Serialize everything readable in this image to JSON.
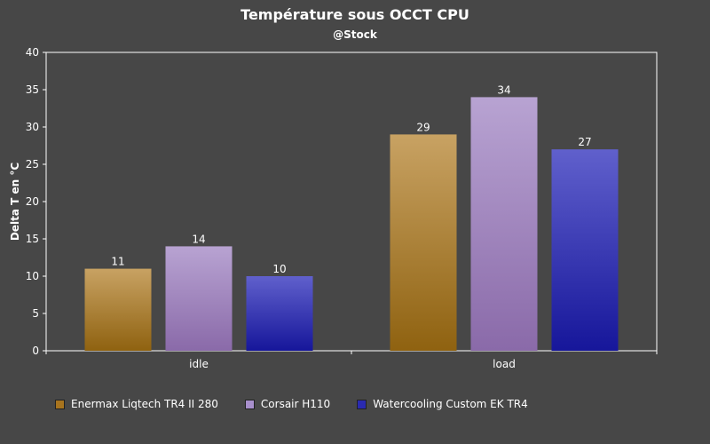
{
  "chart_data": {
    "type": "bar",
    "title": "Température sous OCCT CPU",
    "subtitle": "@Stock",
    "xlabel": "",
    "ylabel": "Delta T en °C",
    "categories": [
      "idle",
      "load"
    ],
    "ylim": [
      0,
      40
    ],
    "yticks": [
      0,
      5,
      10,
      15,
      20,
      25,
      30,
      35,
      40
    ],
    "grid": false,
    "legend_position": "bottom",
    "series": [
      {
        "name": "Enermax Liqtech TR4 II 280",
        "values": [
          11,
          29
        ],
        "color_top": "#c8a263",
        "color_bottom": "#8f6210",
        "swatch": "#a8741e"
      },
      {
        "name": "Corsair H110",
        "values": [
          14,
          34
        ],
        "color_top": "#b8a3d2",
        "color_bottom": "#8a6aa9",
        "swatch": "#a88fcc"
      },
      {
        "name": "Watercooling Custom EK TR4",
        "values": [
          10,
          27
        ],
        "color_top": "#6060cc",
        "color_bottom": "#16169a",
        "swatch": "#2a2ab0"
      }
    ]
  }
}
